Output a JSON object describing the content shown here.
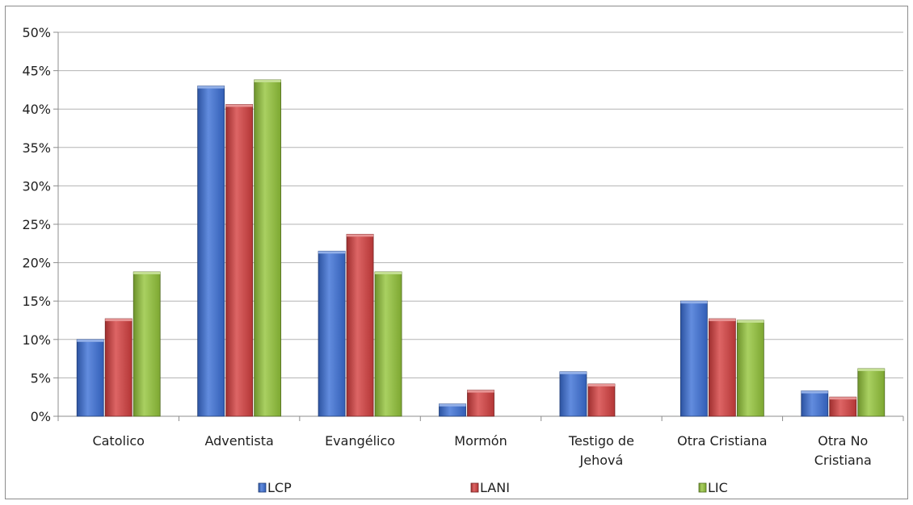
{
  "chart_data": {
    "type": "bar",
    "title": "",
    "xlabel": "",
    "ylabel": "",
    "ylim": [
      0,
      0.5
    ],
    "y_ticks": [
      0,
      0.05,
      0.1,
      0.15,
      0.2,
      0.25,
      0.3,
      0.35,
      0.4,
      0.45,
      0.5
    ],
    "y_tick_labels": [
      "0%",
      "5%",
      "10%",
      "15%",
      "20%",
      "25%",
      "30%",
      "35%",
      "40%",
      "45%",
      "50%"
    ],
    "grid": true,
    "legend_position": "bottom",
    "categories": [
      [
        "Catolico"
      ],
      [
        "Adventista"
      ],
      [
        "Evangélico"
      ],
      [
        "Mormón"
      ],
      [
        "Testigo de",
        "Jehová"
      ],
      [
        "Otra Cristiana"
      ],
      [
        "Otra No",
        "Cristiana"
      ]
    ],
    "series": [
      {
        "name": "LCP",
        "color": "#3b6fd6",
        "values": [
          0.1,
          0.43,
          0.215,
          0.016,
          0.058,
          0.15,
          0.033
        ]
      },
      {
        "name": "LANI",
        "color": "#d43f3f",
        "values": [
          0.127,
          0.406,
          0.237,
          0.034,
          0.042,
          0.127,
          0.025
        ]
      },
      {
        "name": "LIC",
        "color": "#93c43a",
        "values": [
          0.188,
          0.438,
          0.188,
          0,
          0,
          0.125,
          0.062
        ]
      }
    ]
  }
}
